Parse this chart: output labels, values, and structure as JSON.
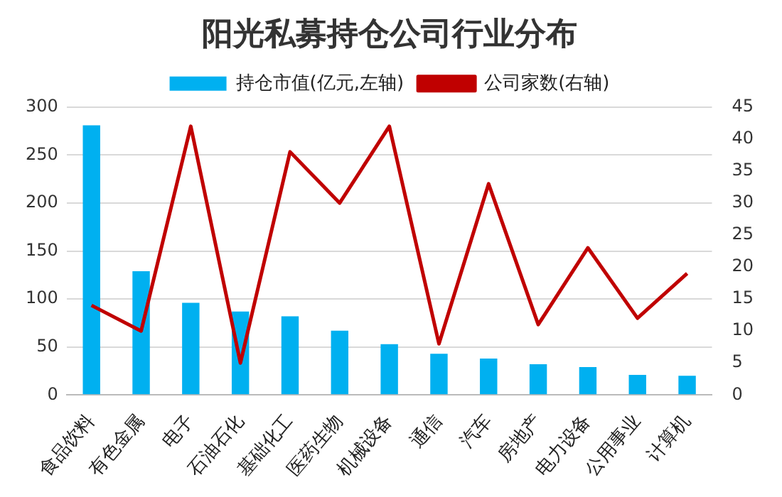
{
  "chart_data": {
    "type": "bar",
    "title": "阳光私募持仓公司行业分布",
    "categories": [
      "食品饮料",
      "有色金属",
      "电子",
      "石油石化",
      "基础化工",
      "医药生物",
      "机械设备",
      "通信",
      "汽车",
      "房地产",
      "电力设备",
      "公用事业",
      "计算机"
    ],
    "series": [
      {
        "name": "持仓市值(亿元,左轴)",
        "color": "#00b0f0",
        "values": [
          281,
          129,
          96,
          87,
          82,
          67,
          53,
          43,
          38,
          32,
          29,
          21,
          20
        ]
      },
      {
        "name": "公司家数(右轴)",
        "type": "line",
        "axis": "y2",
        "color": "#c00000",
        "values": [
          14,
          10,
          42,
          5,
          38,
          30,
          42,
          8,
          33,
          11,
          23,
          12,
          19
        ]
      }
    ],
    "ylim": [
      0,
      300
    ],
    "yticks": [
      0,
      50,
      100,
      150,
      200,
      250,
      300
    ],
    "y2lim": [
      0,
      45
    ],
    "y2ticks": [
      0,
      5,
      10,
      15,
      20,
      25,
      30,
      35,
      40,
      45
    ],
    "grid": "y",
    "legend": "top",
    "marker": "none"
  }
}
